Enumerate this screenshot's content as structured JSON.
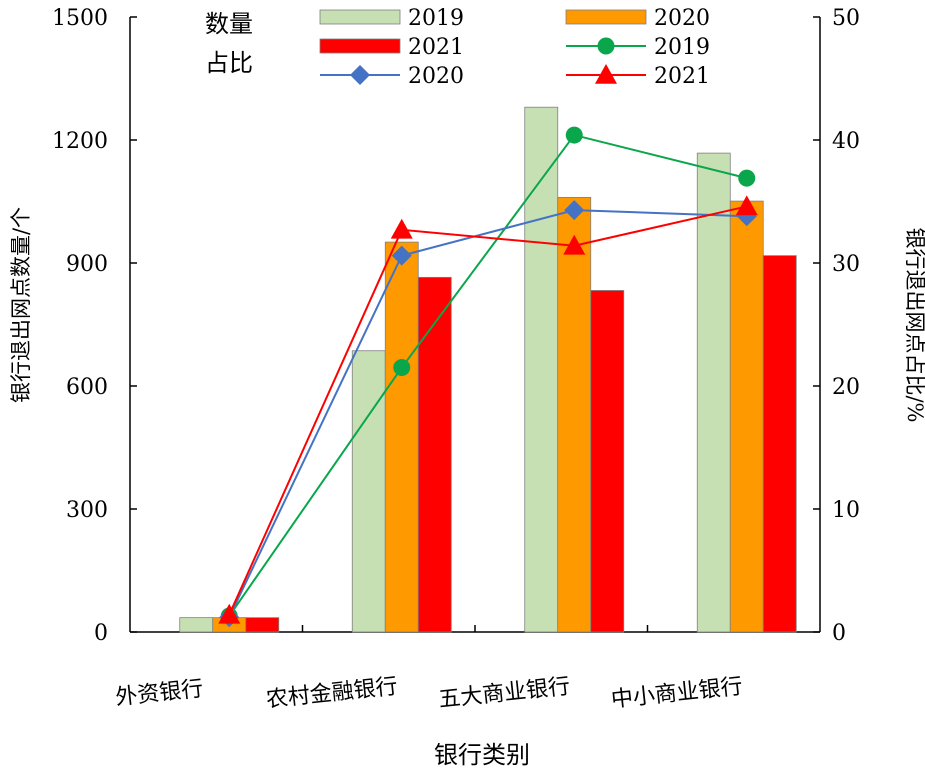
{
  "chart_data": {
    "type": "bar",
    "xlabel": "银行类别",
    "ylabel": "银行退出网点数量/个",
    "ylabel_right": "银行退出网点占比/%",
    "ylim": [
      0,
      1500
    ],
    "ylim_right": [
      0,
      50
    ],
    "yticks": [
      0,
      300,
      600,
      900,
      1200,
      1500
    ],
    "yticks_right": [
      0,
      10,
      20,
      30,
      40,
      50
    ],
    "categories": [
      "外资银行",
      "农村金融银行",
      "五大商业银行",
      "中小商业银行"
    ],
    "legend_group_labels": [
      "数量",
      "占比"
    ],
    "legend_position": "top",
    "grid": false,
    "bar_series": [
      {
        "name": "2019",
        "color": "#c6e0b4",
        "values": [
          35,
          686,
          1280,
          1168
        ]
      },
      {
        "name": "2020",
        "color": "#ff9900",
        "values": [
          35,
          951,
          1060,
          1051
        ]
      },
      {
        "name": "2021",
        "color": "#ff0000",
        "values": [
          35,
          865,
          833,
          918
        ]
      }
    ],
    "line_series": [
      {
        "name": "2019",
        "color": "#0aa64c",
        "marker": "circle",
        "values": [
          1.3,
          21.5,
          40.4,
          36.9
        ]
      },
      {
        "name": "2020",
        "color": "#4472c4",
        "marker": "diamond",
        "values": [
          1.2,
          30.6,
          34.3,
          33.8
        ]
      },
      {
        "name": "2021",
        "color": "#ff0000",
        "marker": "triangle",
        "values": [
          1.4,
          32.7,
          31.4,
          34.6
        ]
      }
    ]
  }
}
